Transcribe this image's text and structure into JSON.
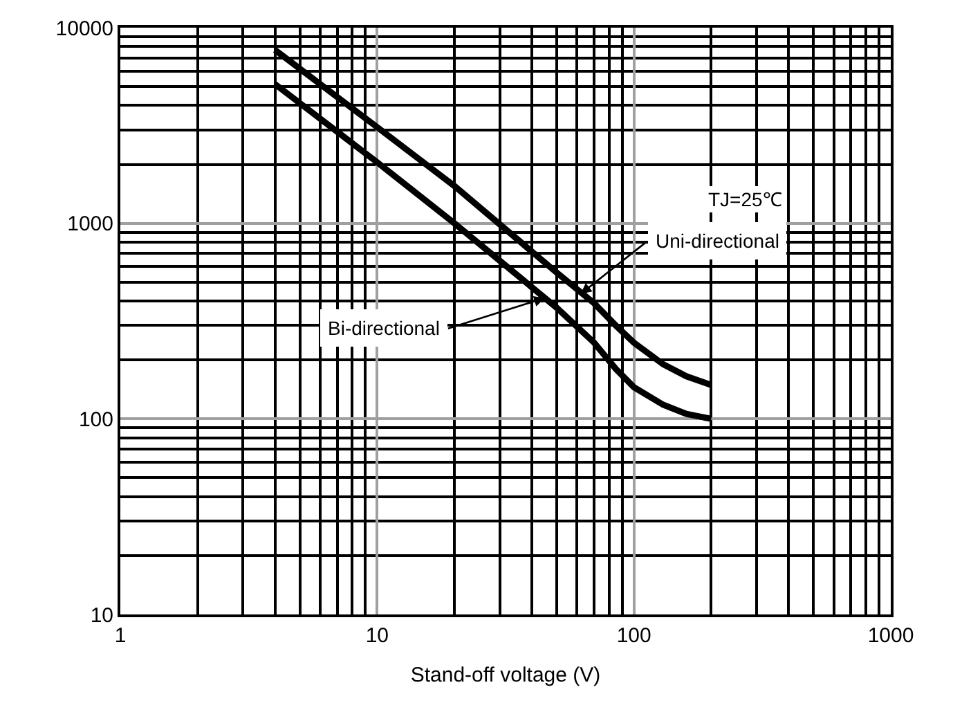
{
  "chart_data": {
    "type": "line",
    "xlabel": "Stand-off voltage (V)",
    "log": "xy",
    "grid": true,
    "marker": "none",
    "line_style": "solid",
    "xlim": [
      1,
      1000
    ],
    "xticks": [
      1,
      10,
      100,
      1000
    ],
    "ylim": [
      10,
      10000
    ],
    "yticks": [
      10,
      100,
      1000,
      10000
    ],
    "series": [
      {
        "color": "#000000",
        "x": [
          4,
          10,
          20,
          50,
          70,
          85,
          100,
          130,
          160,
          200
        ],
        "values": [
          7700,
          3100,
          1550,
          560,
          390,
          300,
          245,
          190,
          165,
          149
        ]
      },
      {
        "color": "#000000",
        "x": [
          4,
          10,
          20,
          50,
          70,
          85,
          100,
          130,
          160,
          200
        ],
        "values": [
          5150,
          2050,
          1000,
          370,
          245,
          180,
          145,
          118,
          106,
          100
        ]
      }
    ],
    "annotations": [
      "TJ=25℃",
      {
        "text": "Uni-directional",
        "x": 62,
        "y": 435
      },
      {
        "text": "Bi-directional",
        "x": 45,
        "y": 415
      }
    ]
  }
}
